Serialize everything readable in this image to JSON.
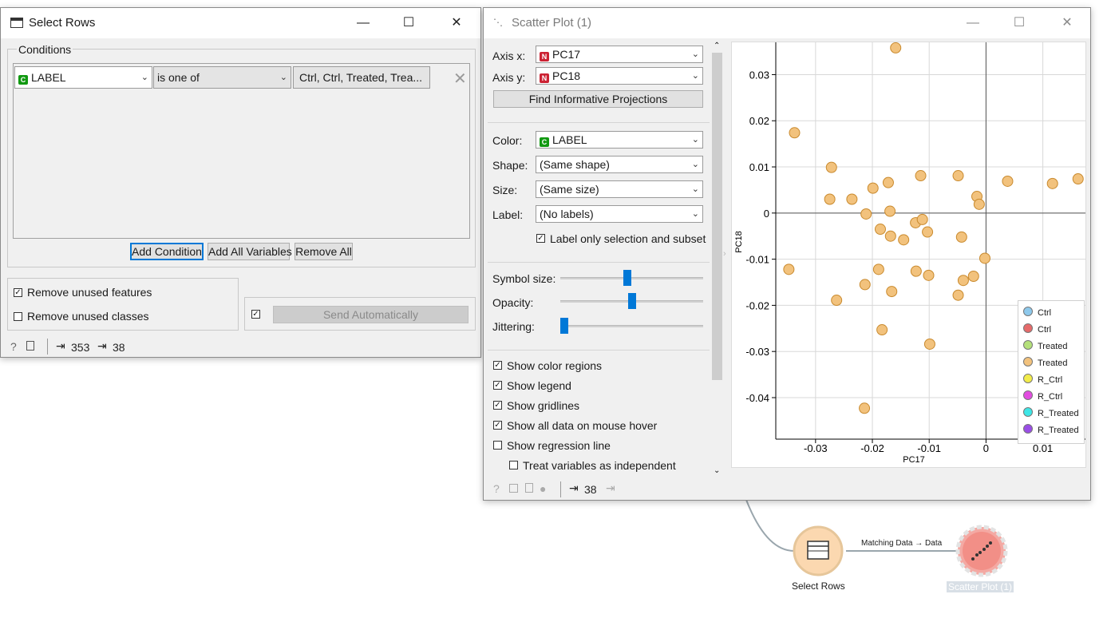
{
  "select_rows": {
    "title": "Select Rows",
    "conditions_label": "Conditions",
    "condition": {
      "variable": "LABEL",
      "operator": "is one of",
      "values": "Ctrl, Ctrl, Treated, Trea..."
    },
    "buttons": {
      "add_condition": "Add Condition",
      "add_all": "Add All Variables",
      "remove_all": "Remove All"
    },
    "remove_unused_features": "Remove unused features",
    "remove_unused_classes": "Remove unused classes",
    "send_automatically": "Send Automatically",
    "input_count": "353",
    "output_count": "38"
  },
  "scatter": {
    "title": "Scatter Plot (1)",
    "axis_x_label": "Axis x:",
    "axis_x_value": "PC17",
    "axis_y_label": "Axis y:",
    "axis_y_value": "PC18",
    "find_projections": "Find Informative Projections",
    "color_label": "Color:",
    "color_value": "LABEL",
    "shape_label": "Shape:",
    "shape_value": "(Same shape)",
    "size_label": "Size:",
    "size_value": "(Same size)",
    "label_label": "Label:",
    "label_value": "(No labels)",
    "label_only_selection": "Label only selection and subset",
    "symbol_size": "Symbol size:",
    "opacity": "Opacity:",
    "jittering": "Jittering:",
    "symbol_size_level": 0.47,
    "opacity_level": 0.5,
    "jittering_level": 0.0,
    "show_color_regions": "Show color regions",
    "show_legend": "Show legend",
    "show_gridlines": "Show gridlines",
    "show_all_data_hover": "Show all data on mouse hover",
    "show_regression_line": "Show regression line",
    "treat_independent": "Treat variables as independent",
    "output_count": "38"
  },
  "workflow": {
    "node_select_rows": "Select Rows",
    "node_scatter": "Scatter Plot (1)",
    "link_label": "Matching Data → Data"
  },
  "chart_data": {
    "type": "scatter",
    "xlabel": "PC17",
    "ylabel": "PC18",
    "xlim": [
      -0.037,
      0.0175
    ],
    "ylim": [
      -0.049,
      0.037
    ],
    "x_ticks": [
      "-0.03",
      "-0.02",
      "-0.01",
      "0",
      "0.01"
    ],
    "y_ticks": [
      "0.03",
      "0.02",
      "0.01",
      "0",
      "-0.01",
      "-0.02",
      "-0.03",
      "-0.04"
    ],
    "grid": true,
    "legend_position": "bottom-right",
    "point_color": "#f2c27d",
    "series": [
      {
        "name": "Treated",
        "x": [
          -0.0159,
          -0.0337,
          -0.0272,
          -0.0275,
          -0.0236,
          -0.0172,
          -0.0199,
          -0.0115,
          -0.0049,
          -0.0016,
          -0.0012,
          0.0038,
          0.0117,
          0.0162,
          -0.0211,
          -0.0169,
          -0.0186,
          -0.0124,
          -0.0112,
          -0.0103,
          -0.0168,
          -0.0145,
          -0.0043,
          -0.0002,
          -0.0347,
          -0.0189,
          -0.0123,
          -0.0101,
          -0.0022,
          -0.004,
          -0.0213,
          -0.0166,
          -0.0049,
          -0.0263,
          -0.0183,
          -0.0099,
          -0.0214
        ],
        "y": [
          0.0358,
          0.0174,
          0.0099,
          0.003,
          0.003,
          0.0066,
          0.0054,
          0.0081,
          0.0081,
          0.0036,
          0.0019,
          0.0069,
          0.0064,
          0.0074,
          -0.0002,
          0.0004,
          -0.0035,
          -0.0021,
          -0.0014,
          -0.0041,
          -0.005,
          -0.0058,
          -0.0052,
          -0.0098,
          -0.0122,
          -0.0122,
          -0.0126,
          -0.0135,
          -0.0137,
          -0.0146,
          -0.0155,
          -0.017,
          -0.0178,
          -0.0189,
          -0.0253,
          -0.0284,
          -0.0423
        ]
      }
    ],
    "legend": [
      {
        "name": "Ctrl",
        "color": "#8ec9ec"
      },
      {
        "name": "Ctrl",
        "color": "#e66a6a"
      },
      {
        "name": "Treated",
        "color": "#b4e07a"
      },
      {
        "name": "Treated",
        "color": "#f2c27d"
      },
      {
        "name": "R_Ctrl",
        "color": "#f2ec4a"
      },
      {
        "name": "R_Ctrl",
        "color": "#e24de0"
      },
      {
        "name": "R_Treated",
        "color": "#3ee6e6"
      },
      {
        "name": "R_Treated",
        "color": "#9a4ee6"
      }
    ]
  }
}
